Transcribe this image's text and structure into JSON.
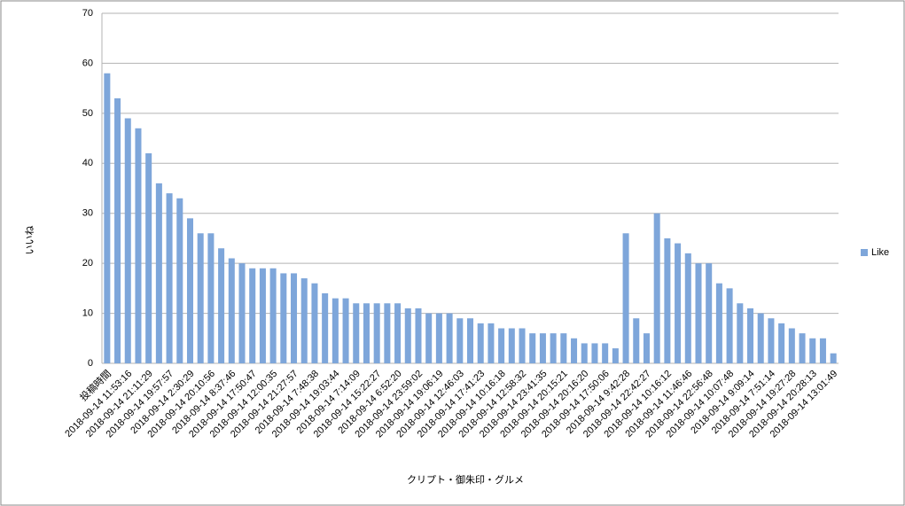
{
  "chart_data": {
    "type": "bar",
    "x_label": "クリプト・御朱印・グルメ",
    "y_label": "いいね",
    "categories": [
      "投稿時間",
      null,
      "2018-09-14 11:53:16",
      null,
      "2018-09-14 21:11:29",
      null,
      "2018-09-14 19:57:57",
      null,
      "2018-09-14 2:30:29",
      null,
      "2018-09-14 20:10:56",
      null,
      "2018-09-14 8:37:46",
      null,
      "2018-09-14 17:50:47",
      null,
      "2018-09-14 12:00:35",
      null,
      "2018-09-14 21:27:57",
      null,
      "2018-09-14 7:48:38",
      null,
      "2018-09-14 19:03:44",
      null,
      "2018-09-14 7:14:09",
      null,
      "2018-09-14 15:22:27",
      null,
      "2018-09-14 6:52:20",
      null,
      "2018-09-14 23:59:02",
      null,
      "2018-09-14 19:06:19",
      null,
      "2018-09-14 12:46:03",
      null,
      "2018-09-14 17:41:23",
      null,
      "2018-09-14 10:16:18",
      null,
      "2018-09-14 12:58:32",
      null,
      "2018-09-14 23:41:35",
      null,
      "2018-09-14 20:15:21",
      null,
      "2018-09-14 20:16:20",
      null,
      "2018-09-14 17:50:06",
      null,
      "2018-09-14 9:42:28",
      null,
      "2018-09-14 22:42:27",
      null,
      "2018-09-14 10:16:12",
      null,
      "2018-09-14 11:46:46",
      null,
      "2018-09-14 22:56:48",
      null,
      "2018-09-14 10:07:48",
      null,
      "2018-09-14 9:09:14",
      null,
      "2018-09-14 7:51:14",
      null,
      "2018-09-14 19:27:28",
      null,
      "2018-09-14 20:28:13",
      null,
      "2018-09-14 13:01:49"
    ],
    "series": [
      {
        "name": "Like",
        "color": "#7ea6da",
        "values": [
          58,
          53,
          49,
          47,
          42,
          36,
          34,
          33,
          29,
          26,
          26,
          23,
          21,
          20,
          19,
          19,
          19,
          18,
          18,
          17,
          16,
          14,
          13,
          13,
          12,
          12,
          12,
          12,
          12,
          11,
          11,
          10,
          10,
          10,
          9,
          9,
          8,
          8,
          7,
          7,
          7,
          6,
          6,
          6,
          6,
          5,
          4,
          4,
          4,
          3,
          26,
          9,
          6,
          30,
          25,
          24,
          22,
          20,
          20,
          16,
          15,
          12,
          11,
          10,
          9,
          8,
          7,
          6,
          5,
          5,
          2
        ]
      }
    ],
    "ylim": [
      0,
      70
    ],
    "yticks": [
      0,
      10,
      20,
      30,
      40,
      50,
      60,
      70
    ],
    "grid": true,
    "legend": "right"
  }
}
